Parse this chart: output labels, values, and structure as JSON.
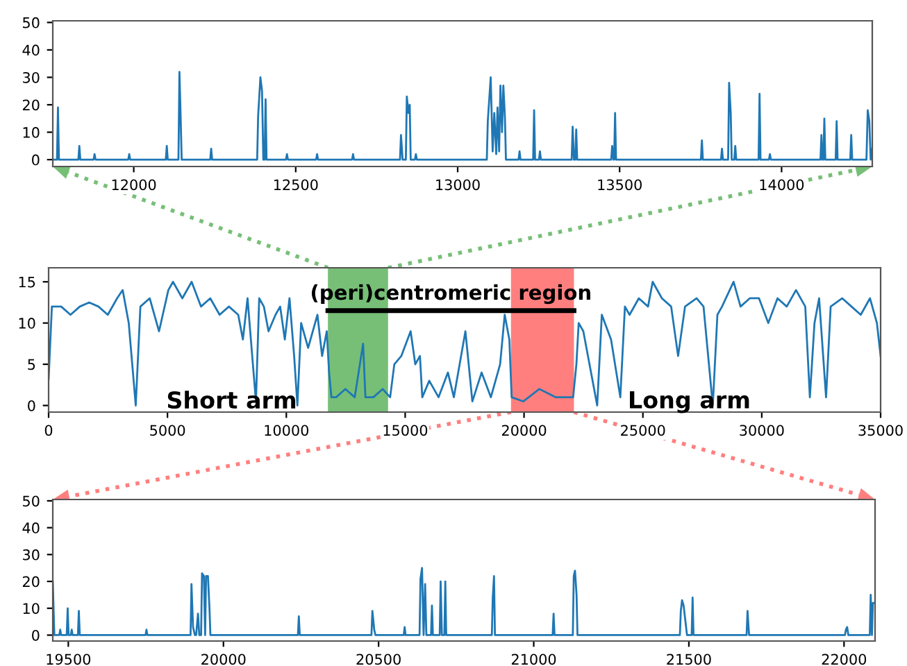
{
  "chart_data": [
    {
      "type": "line",
      "xlim": [
        11750,
        14280
      ],
      "ylim": [
        -2.5,
        50.6
      ],
      "xticks": [
        12000,
        12500,
        13000,
        13500,
        14000
      ],
      "yticks": [
        0,
        10,
        20,
        30,
        40,
        50
      ],
      "grid": false,
      "series": [
        {
          "color": "#1f77b4",
          "x": [
            11750,
            11763,
            11766,
            11769,
            11829,
            11832,
            11835,
            11876,
            11879,
            11882,
            11983,
            11986,
            11989,
            12099,
            12102,
            12105,
            12138,
            12141,
            12144,
            12148,
            12236,
            12239,
            12242,
            12381,
            12384,
            12391,
            12396,
            12400,
            12404,
            12407,
            12410,
            12470,
            12473,
            12476,
            12563,
            12566,
            12569,
            12674,
            12677,
            12680,
            12822,
            12825,
            12830,
            12840,
            12843,
            12848,
            12852,
            12855,
            12868,
            12871,
            12874,
            13090,
            13093,
            13102,
            13108,
            13113,
            13119,
            13123,
            13128,
            13132,
            13137,
            13141,
            13144,
            13146,
            13149,
            13188,
            13191,
            13194,
            13233,
            13236,
            13239,
            13251,
            13254,
            13257,
            13352,
            13355,
            13359,
            13363,
            13366,
            13369,
            13474,
            13477,
            13481,
            13483,
            13486,
            13489,
            13751,
            13754,
            13757,
            13813,
            13816,
            13819,
            13835,
            13838,
            13843,
            13846,
            13854,
            13857,
            13860,
            13929,
            13932,
            13935,
            13961,
            13964,
            13967,
            14120,
            14123,
            14126,
            14129,
            14132,
            14135,
            14167,
            14170,
            14173,
            14212,
            14215,
            14218,
            14262,
            14266,
            14271,
            14275,
            14280
          ],
          "values": [
            0,
            0,
            19,
            0,
            0,
            5,
            0,
            0,
            2,
            0,
            0,
            2,
            0,
            0,
            5,
            0,
            0,
            32,
            19,
            0,
            0,
            4,
            0,
            0,
            16,
            30,
            25,
            0,
            0,
            22,
            0,
            0,
            2,
            0,
            0,
            2,
            0,
            0,
            2,
            0,
            0,
            9,
            0,
            0,
            23,
            17,
            20,
            0,
            0,
            2,
            0,
            0,
            14,
            30,
            3,
            17,
            2,
            19,
            3,
            27,
            10,
            27,
            20,
            15,
            0,
            0,
            3,
            0,
            0,
            18,
            0,
            0,
            3,
            0,
            0,
            12,
            0,
            0,
            11,
            0,
            0,
            5,
            0,
            0,
            17,
            0,
            0,
            7,
            0,
            0,
            4,
            0,
            0,
            28,
            17,
            0,
            0,
            5,
            0,
            0,
            24,
            0,
            0,
            2,
            0,
            0,
            9,
            0,
            0,
            15,
            0,
            0,
            14,
            0,
            0,
            9,
            0,
            0,
            18,
            14,
            0,
            4
          ]
        }
      ]
    },
    {
      "type": "line",
      "xlim": [
        0,
        35000
      ],
      "ylim": [
        -0.8,
        16.7
      ],
      "xticks": [
        0,
        5000,
        10000,
        15000,
        20000,
        25000,
        30000,
        35000
      ],
      "yticks": [
        0,
        5,
        10,
        15
      ],
      "grid": false,
      "annotations": [
        "(peri)centromeric region",
        "Short arm",
        "Long arm"
      ],
      "bands": [
        {
          "axis": "x",
          "from": 11750,
          "to": 14280,
          "color": "#77bf77"
        },
        {
          "axis": "x",
          "from": 19450,
          "to": 22100,
          "color": "#ff7f7f"
        }
      ],
      "series": [
        {
          "color": "#1f77b4",
          "x": [
            0,
            137,
            529,
            921,
            1313,
            1705,
            2097,
            2489,
            2881,
            3116,
            3371,
            3665,
            3861,
            4253,
            4645,
            5037,
            5233,
            5625,
            6017,
            6409,
            6801,
            7193,
            7585,
            7977,
            8173,
            8369,
            8565,
            8722,
            8859,
            9055,
            9251,
            9545,
            9741,
            9937,
            10133,
            10329,
            10466,
            10623,
            10917,
            11309,
            11505,
            11701,
            11799,
            11897,
            12093,
            12485,
            12877,
            13230,
            13328,
            13661,
            14053,
            14367,
            14543,
            14837,
            15229,
            15425,
            15621,
            15719,
            16013,
            16405,
            16797,
            17048,
            17534,
            17826,
            18215,
            18604,
            18993,
            19187,
            19382,
            19479,
            19965,
            20646,
            21326,
            22065,
            22202,
            22299,
            22494,
            22883,
            23077,
            23272,
            23661,
            24050,
            24244,
            24439,
            24828,
            25217,
            25411,
            25800,
            26189,
            26481,
            26773,
            27259,
            27551,
            27940,
            28134,
            28329,
            28815,
            29107,
            29496,
            29885,
            30274,
            30663,
            31052,
            31441,
            31830,
            32024,
            32219,
            32413,
            32705,
            32899,
            33386,
            33775,
            34164,
            34553,
            34844,
            35000
          ],
          "values": [
            3.2,
            12,
            12,
            11,
            12,
            12.5,
            12,
            11,
            13,
            14,
            10,
            0,
            12,
            13,
            9,
            14,
            15,
            13,
            15,
            12,
            13,
            11,
            12,
            11,
            8,
            13,
            6,
            0.5,
            13,
            12,
            9,
            11,
            12,
            8,
            13,
            6,
            0,
            10,
            7,
            11,
            6,
            9,
            4,
            1,
            1,
            2,
            1,
            7.5,
            1,
            1,
            2,
            1,
            5,
            6,
            9,
            5,
            6,
            1,
            3,
            1,
            4,
            1,
            9,
            0.5,
            4,
            1,
            5,
            11,
            8,
            1,
            0.5,
            2,
            1,
            1,
            5,
            10,
            9,
            3,
            0,
            11,
            8,
            1,
            12,
            11,
            13,
            12,
            15,
            13,
            12,
            6,
            12,
            13,
            12,
            0,
            11,
            12,
            15,
            12,
            13,
            13,
            10,
            13,
            12,
            14,
            12,
            1,
            10,
            13,
            1,
            12,
            13,
            12,
            11,
            13,
            10,
            6
          ]
        }
      ]
    },
    {
      "type": "line",
      "xlim": [
        19450,
        22100
      ],
      "ylim": [
        -2.2,
        50.5
      ],
      "xticks": [
        19500,
        20000,
        20500,
        21000,
        21500,
        22000
      ],
      "yticks": [
        0,
        10,
        20,
        30,
        40,
        50
      ],
      "grid": false,
      "series": [
        {
          "color": "#1f77b4",
          "x": [
            19450,
            19455,
            19471,
            19474,
            19477,
            19495,
            19498,
            19501,
            19508,
            19511,
            19514,
            19531,
            19534,
            19537,
            19749,
            19752,
            19755,
            19894,
            19897,
            19902,
            19908,
            19912,
            19918,
            19922,
            19928,
            19931,
            19937,
            19941,
            19944,
            19950,
            19955,
            19958,
            20240,
            20243,
            20246,
            20477,
            20480,
            20486,
            20490,
            20581,
            20584,
            20587,
            20632,
            20635,
            20640,
            20645,
            20650,
            20654,
            20669,
            20672,
            20675,
            20697,
            20700,
            20704,
            20712,
            20715,
            20718,
            20865,
            20868,
            20872,
            20875,
            21061,
            21064,
            21067,
            21126,
            21129,
            21133,
            21138,
            21141,
            21471,
            21474,
            21478,
            21483,
            21490,
            21494,
            21509,
            21512,
            21515,
            21686,
            21689,
            21694,
            22003,
            22006,
            22010,
            22014,
            22083,
            22086,
            22090,
            22093,
            22100
          ],
          "values": [
            20,
            0,
            0,
            2,
            0,
            0,
            10,
            0,
            0,
            2,
            0,
            0,
            9,
            0,
            0,
            2,
            0,
            0,
            19,
            3,
            0,
            0,
            8,
            0,
            0,
            23,
            22,
            0,
            22,
            22,
            10,
            0,
            0,
            7,
            0,
            0,
            9,
            2,
            0,
            0,
            3,
            0,
            0,
            21,
            25,
            0,
            19,
            0,
            0,
            11,
            0,
            0,
            20,
            0,
            0,
            20,
            0,
            0,
            14,
            22,
            0,
            0,
            8,
            0,
            0,
            22,
            24,
            15,
            0,
            0,
            9,
            13,
            11,
            4,
            0,
            0,
            14,
            0,
            0,
            9,
            0,
            0,
            2,
            3,
            0,
            0,
            15,
            0,
            12,
            12
          ]
        }
      ]
    }
  ]
}
